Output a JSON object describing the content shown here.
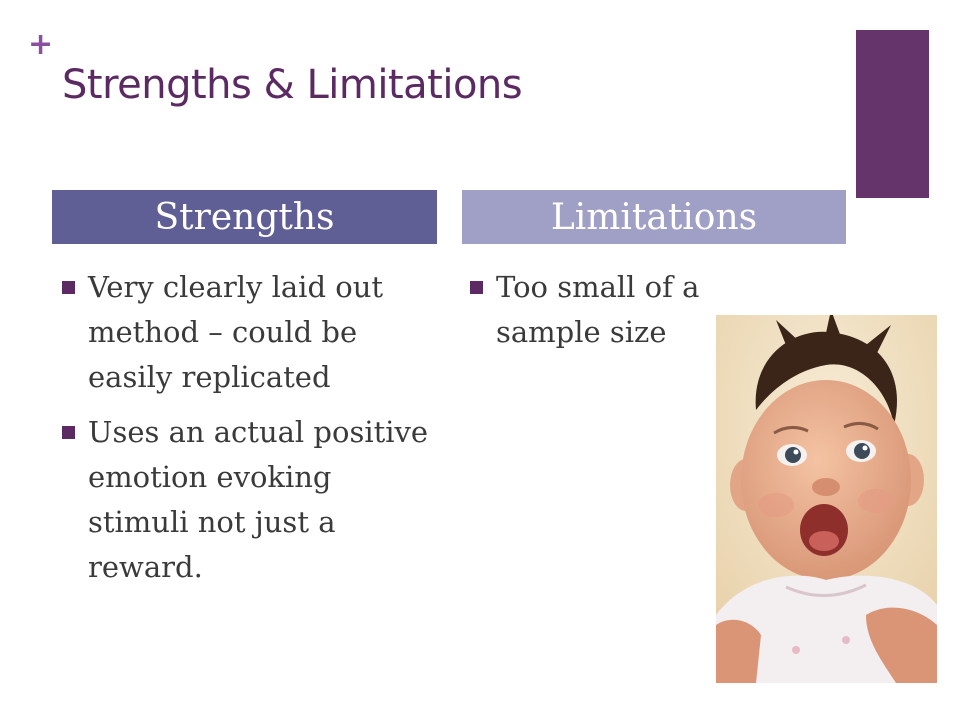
{
  "slide": {
    "plus_mark": "+",
    "title": "Strengths & Limitations"
  },
  "columns": {
    "strengths": {
      "header": "Strengths",
      "items": [
        "Very clearly laid out method – could be easily replicated",
        "Uses an actual positive emotion evoking stimuli not just a reward."
      ]
    },
    "limitations": {
      "header": "Limitations",
      "items": [
        "Too small of a sample size"
      ]
    }
  },
  "colors": {
    "title": "#5b2a63",
    "accent_bar": "#65346b",
    "strengths_header": "#5f5f96",
    "limitations_header": "#a0a0c6",
    "bullet": "#5b2a63"
  },
  "image": {
    "icon": "baby-photo"
  }
}
